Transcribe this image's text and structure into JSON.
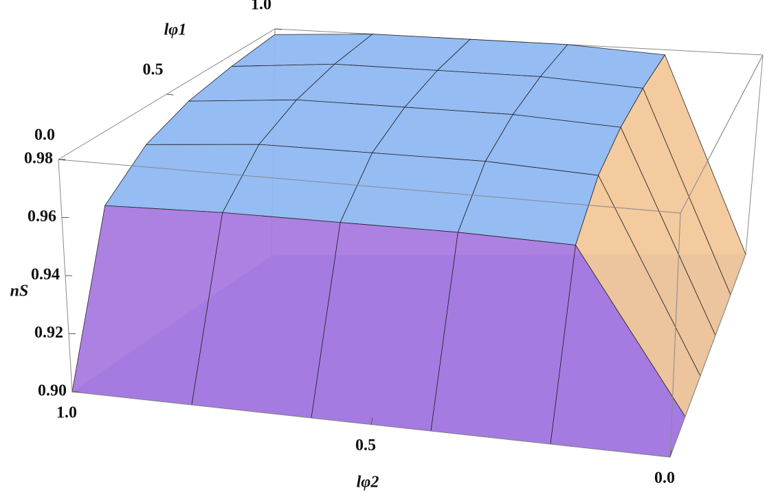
{
  "chart_data": {
    "type": "surface3d",
    "xlabel": "lφ2",
    "ylabel": "lφ1",
    "zlabel": "nS",
    "x": [
      0,
      0.2,
      0.4,
      0.6,
      0.8,
      1
    ],
    "y": [
      0,
      0.2,
      0.4,
      0.6,
      0.8,
      1
    ],
    "z": [
      [
        0.9,
        0.9,
        0.9,
        0.9,
        0.9,
        0.9
      ],
      [
        0.9,
        0.955,
        0.956,
        0.956,
        0.956,
        0.955
      ],
      [
        0.9,
        0.968,
        0.97,
        0.97,
        0.97,
        0.967
      ],
      [
        0.9,
        0.974,
        0.976,
        0.976,
        0.976,
        0.973
      ],
      [
        0.9,
        0.977,
        0.979,
        0.979,
        0.979,
        0.976
      ],
      [
        0.9,
        0.978,
        0.98,
        0.98,
        0.98,
        0.978
      ]
    ],
    "xlim": [
      0,
      1
    ],
    "ylim": [
      0,
      1
    ],
    "zlim": [
      0.9,
      0.98
    ],
    "xticks": [
      {
        "value": 1,
        "label": "1.0"
      },
      0.5,
      {
        "value": 0,
        "label": "0.0"
      }
    ],
    "yticks": [
      {
        "value": 0,
        "label": "0.0"
      },
      0.5,
      {
        "value": 1,
        "label": "1.0"
      }
    ],
    "zticks": [
      {
        "value": 0.9,
        "label": "0.90"
      },
      0.92,
      0.94,
      0.96,
      0.98
    ],
    "colors": {
      "top": "#8fb8f2",
      "front": "#a97ae0",
      "side": "#f3c79a",
      "floor": "#5f8fe0"
    }
  }
}
